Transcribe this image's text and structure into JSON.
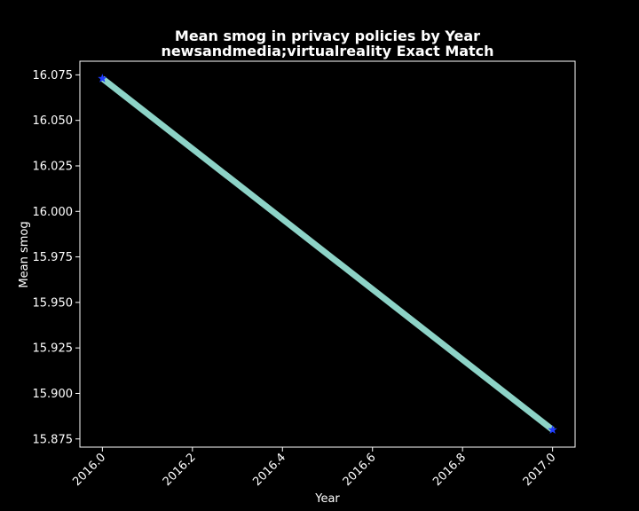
{
  "chart_data": {
    "type": "line",
    "title": "Mean smog in privacy policies by Year",
    "subtitle": "newsandmedia;virtualreality Exact Match",
    "xlabel": "Year",
    "ylabel": "Mean smog",
    "x": [
      2016.0,
      2017.0
    ],
    "series": [
      {
        "values": [
          16.073,
          15.88
        ],
        "line_color": "#8dd3c7",
        "marker_color": "#1f3cff",
        "marker": "star"
      }
    ],
    "xlim": [
      2015.95,
      2017.05
    ],
    "ylim": [
      15.8705,
      16.0825
    ],
    "xticks": [
      "2016.0",
      "2016.2",
      "2016.4",
      "2016.6",
      "2016.8",
      "2017.0"
    ],
    "yticks": [
      "15.875",
      "15.900",
      "15.925",
      "15.950",
      "15.975",
      "16.000",
      "16.025",
      "16.050",
      "16.075"
    ],
    "grid": false,
    "legend": "none",
    "colors": {
      "background": "#000000",
      "foreground": "#ffffff"
    }
  }
}
